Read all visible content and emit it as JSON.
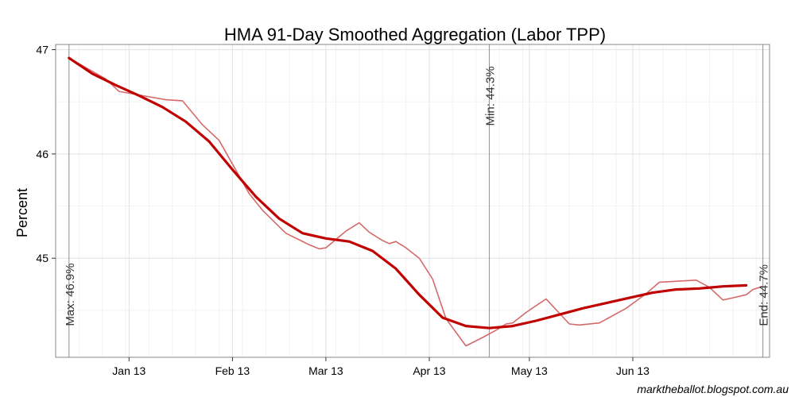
{
  "chart_data": {
    "type": "line",
    "title": "HMA 91-Day Smoothed Aggregation (Labor TPP)",
    "ylabel": "Percent",
    "xlabel": "",
    "source": "marktheballot.blogspot.com.au",
    "ylim": [
      44.05,
      47.05
    ],
    "yticks": [
      45,
      46,
      47
    ],
    "xlim": [
      "2012-12-10",
      "2013-07-12"
    ],
    "xticks": [
      {
        "date": "2013-01-01",
        "label": "Jan 13"
      },
      {
        "date": "2013-02-01",
        "label": "Feb 13"
      },
      {
        "date": "2013-03-01",
        "label": "Mar 13"
      },
      {
        "date": "2013-04-01",
        "label": "Apr 13"
      },
      {
        "date": "2013-05-01",
        "label": "May 13"
      },
      {
        "date": "2013-06-01",
        "label": "Jun 13"
      }
    ],
    "grid": true,
    "colors": {
      "smoothed": "#c00000",
      "raw": "#d46a6a",
      "vline": "#999999",
      "panel_border": "#888888",
      "grid_major": "#e3e3e3",
      "grid_minor": "#f2f2f2"
    },
    "series": [
      {
        "values": [
          [
            "2012-12-14",
            46.92
          ],
          [
            "2012-12-21",
            46.77
          ],
          [
            "2012-12-28",
            46.66
          ],
          [
            "2013-01-04",
            46.56
          ],
          [
            "2013-01-11",
            46.45
          ],
          [
            "2013-01-18",
            46.31
          ],
          [
            "2013-01-25",
            46.12
          ],
          [
            "2013-02-01",
            45.85
          ],
          [
            "2013-02-08",
            45.59
          ],
          [
            "2013-02-15",
            45.38
          ],
          [
            "2013-02-22",
            45.24
          ],
          [
            "2013-03-01",
            45.19
          ],
          [
            "2013-03-08",
            45.16
          ],
          [
            "2013-03-15",
            45.07
          ],
          [
            "2013-03-22",
            44.9
          ],
          [
            "2013-03-29",
            44.65
          ],
          [
            "2013-04-05",
            44.43
          ],
          [
            "2013-04-12",
            44.35
          ],
          [
            "2013-04-19",
            44.33
          ],
          [
            "2013-04-26",
            44.35
          ],
          [
            "2013-05-03",
            44.4
          ],
          [
            "2013-05-10",
            44.46
          ],
          [
            "2013-05-17",
            44.52
          ],
          [
            "2013-05-24",
            44.57
          ],
          [
            "2013-05-31",
            44.62
          ],
          [
            "2013-06-07",
            44.67
          ],
          [
            "2013-06-14",
            44.7
          ],
          [
            "2013-06-21",
            44.71
          ],
          [
            "2013-06-28",
            44.73
          ],
          [
            "2013-07-05",
            44.74
          ]
        ]
      },
      {
        "values": [
          [
            "2012-12-14",
            46.92
          ],
          [
            "2012-12-25",
            46.72
          ],
          [
            "2012-12-29",
            46.6
          ],
          [
            "2013-01-05",
            46.56
          ],
          [
            "2013-01-12",
            46.52
          ],
          [
            "2013-01-17",
            46.51
          ],
          [
            "2013-01-23",
            46.28
          ],
          [
            "2013-01-28",
            46.13
          ],
          [
            "2013-02-06",
            45.62
          ],
          [
            "2013-02-10",
            45.46
          ],
          [
            "2013-02-17",
            45.24
          ],
          [
            "2013-02-24",
            45.13
          ],
          [
            "2013-02-27",
            45.09
          ],
          [
            "2013-03-01",
            45.1
          ],
          [
            "2013-03-07",
            45.26
          ],
          [
            "2013-03-11",
            45.34
          ],
          [
            "2013-03-14",
            45.25
          ],
          [
            "2013-03-18",
            45.17
          ],
          [
            "2013-03-20",
            45.14
          ],
          [
            "2013-03-22",
            45.16
          ],
          [
            "2013-03-25",
            45.1
          ],
          [
            "2013-03-29",
            45.0
          ],
          [
            "2013-04-02",
            44.8
          ],
          [
            "2013-04-06",
            44.42
          ],
          [
            "2013-04-12",
            44.16
          ],
          [
            "2013-04-17",
            44.24
          ],
          [
            "2013-04-21",
            44.31
          ],
          [
            "2013-04-24",
            44.37
          ],
          [
            "2013-04-26",
            44.38
          ],
          [
            "2013-04-30",
            44.48
          ],
          [
            "2013-05-06",
            44.61
          ],
          [
            "2013-05-13",
            44.37
          ],
          [
            "2013-05-16",
            44.36
          ],
          [
            "2013-05-22",
            44.38
          ],
          [
            "2013-05-30",
            44.52
          ],
          [
            "2013-06-05",
            44.66
          ],
          [
            "2013-06-09",
            44.77
          ],
          [
            "2013-06-20",
            44.79
          ],
          [
            "2013-06-24",
            44.72
          ],
          [
            "2013-06-28",
            44.6
          ],
          [
            "2013-07-01",
            44.62
          ],
          [
            "2013-07-05",
            44.65
          ],
          [
            "2013-07-07",
            44.7
          ],
          [
            "2013-07-10",
            44.73
          ]
        ]
      }
    ],
    "vlines": [
      {
        "date": "2012-12-14",
        "label": "Max: 46.9%",
        "label_y": 44.35
      },
      {
        "date": "2013-04-19",
        "label": "Min: 44.3%",
        "label_y": 46.27
      },
      {
        "date": "2013-07-10",
        "label": "End: 44.7%",
        "label_y": 44.35
      }
    ]
  }
}
